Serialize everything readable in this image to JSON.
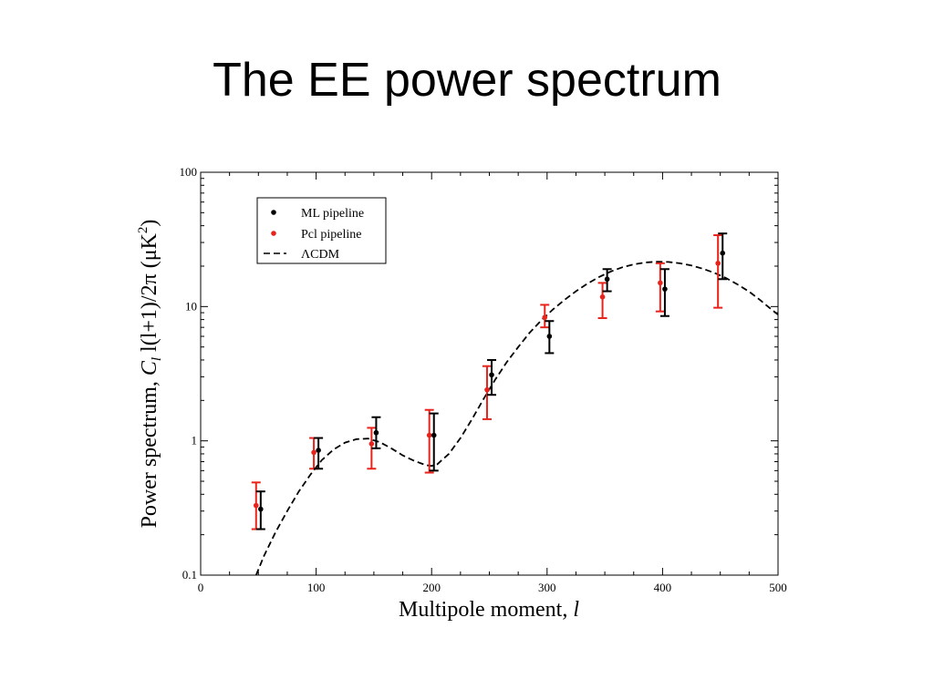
{
  "slide": {
    "title": "The EE power spectrum"
  },
  "colors": {
    "ml": "#000000",
    "pcl": "#e8231c",
    "model": "#000000"
  },
  "chart_data": {
    "type": "scatter",
    "xlabel": "Multipole moment, l",
    "ylabel": "Power spectrum, C_l l(l+1)/2π (μK²)",
    "ylabel_parts": {
      "a": "Power spectrum, ",
      "b": "C",
      "c": "l",
      "d": " l(l+1)/2π (μK",
      "e": "2",
      "f": ")"
    },
    "xlabel_parts": {
      "a": "Multipole moment, ",
      "b": "l"
    },
    "xlim": [
      0,
      500
    ],
    "ylim": [
      0.1,
      100
    ],
    "yscale": "log",
    "x_ticks": [
      "0",
      "100",
      "200",
      "300",
      "400",
      "500"
    ],
    "y_ticks": [
      "0.1",
      "1",
      "10",
      "100"
    ],
    "legend_position": "top-left",
    "series": [
      {
        "name": "ML pipeline",
        "marker": "point",
        "x": [
          52,
          102,
          152,
          202,
          252,
          302,
          352,
          402,
          452
        ],
        "y": [
          0.31,
          0.85,
          1.15,
          1.1,
          3.1,
          6.0,
          16.0,
          13.5,
          25.0
        ],
        "err_low": [
          0.22,
          0.62,
          0.88,
          0.6,
          2.2,
          4.5,
          13.0,
          8.5,
          16.0
        ],
        "err_high": [
          0.42,
          1.05,
          1.5,
          1.6,
          4.0,
          7.8,
          19.0,
          19.0,
          35.0
        ]
      },
      {
        "name": "Pcl pipeline",
        "marker": "point",
        "x": [
          48,
          98,
          148,
          198,
          248,
          298,
          348,
          398,
          448
        ],
        "y": [
          0.33,
          0.82,
          0.95,
          1.1,
          2.4,
          8.3,
          11.8,
          15.0,
          21.0
        ],
        "err_low": [
          0.22,
          0.62,
          0.62,
          0.58,
          1.45,
          7.0,
          8.2,
          9.2,
          9.8
        ],
        "err_high": [
          0.49,
          1.05,
          1.25,
          1.7,
          3.6,
          10.3,
          15.0,
          21.0,
          34.0
        ]
      },
      {
        "name": "ΛCDM",
        "marker": "dashed-line",
        "x": [
          48,
          55,
          65,
          75,
          85,
          95,
          105,
          115,
          125,
          135,
          145,
          155,
          165,
          175,
          185,
          195,
          200,
          205,
          215,
          225,
          235,
          245,
          255,
          265,
          275,
          285,
          295,
          305,
          315,
          325,
          335,
          345,
          355,
          365,
          375,
          385,
          395,
          405,
          415,
          425,
          435,
          445,
          455,
          465,
          475,
          485,
          495,
          500
        ],
        "y": [
          0.1,
          0.14,
          0.21,
          0.3,
          0.42,
          0.56,
          0.72,
          0.86,
          0.97,
          1.03,
          1.04,
          0.98,
          0.88,
          0.78,
          0.71,
          0.66,
          0.65,
          0.67,
          0.8,
          1.05,
          1.45,
          2.05,
          2.85,
          3.85,
          5.0,
          6.4,
          7.9,
          9.5,
          11.2,
          13.0,
          14.8,
          16.6,
          18.2,
          19.6,
          20.6,
          21.3,
          21.6,
          21.5,
          21.0,
          20.2,
          19.1,
          17.8,
          16.3,
          14.6,
          12.9,
          11.1,
          9.4,
          8.7
        ]
      }
    ]
  }
}
